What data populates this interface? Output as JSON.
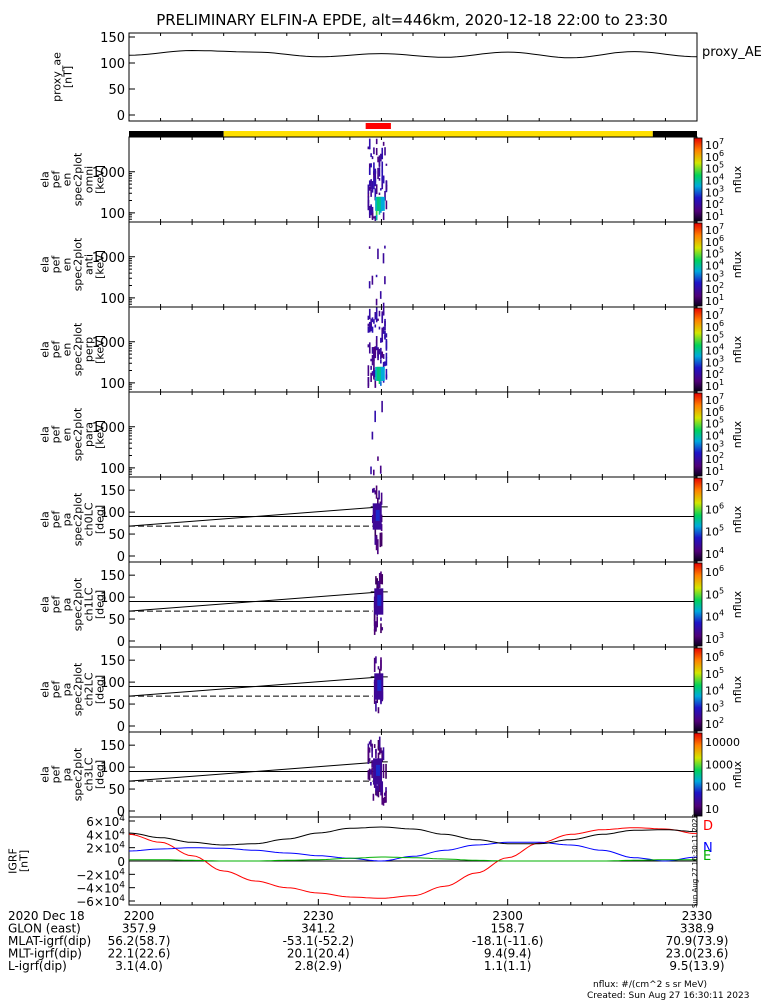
{
  "title": "PRELIMINARY ELFIN-A EPDE, alt=446km, 2020-12-18 22:00 to 23:30",
  "colors": {
    "red": "#ff0000",
    "yellow": "#ffe000",
    "black": "#000000",
    "blue": "#0000ff",
    "green": "#00b000"
  },
  "chart_data": [
    {
      "type": "line",
      "panel": "proxy_ae",
      "ylabel": [
        "proxy_ae",
        "[nT]"
      ],
      "legend": "proxy_AE",
      "ylim": [
        0,
        150
      ],
      "yticks": [
        "150",
        "100",
        "50",
        "0"
      ],
      "x_min": [
        0,
        10,
        20,
        30,
        40,
        50,
        60,
        70,
        80,
        90
      ],
      "series": [
        {
          "values": [
            115,
            124,
            121,
            112,
            118,
            111,
            121,
            110,
            122,
            112
          ]
        }
      ]
    },
    {
      "type": "bar",
      "panel": "orbit_bar",
      "segments": [
        {
          "from_min": 0,
          "to_min": 15,
          "color": "black"
        },
        {
          "from_min": 15,
          "to_min": 83,
          "color": "yellow"
        },
        {
          "from_min": 83,
          "to_min": 90,
          "color": "black"
        }
      ],
      "science_zone": {
        "from_min": 37.5,
        "to_min": 41.5,
        "color": "red"
      }
    },
    {
      "type": "heatmap",
      "panel": "omni",
      "ylabel": [
        "ela",
        "pef",
        "en",
        "spec2plot",
        "omni",
        "[keV]"
      ],
      "yscale": "log",
      "ylim": [
        60,
        7000
      ],
      "yticks": [
        "1000",
        "100"
      ],
      "zlabel": "nflux",
      "zlim": [
        10,
        10000000
      ],
      "ztick_exponents": [
        "7",
        "6",
        "5",
        "4",
        "3",
        "2",
        "1"
      ],
      "time_window_min": [
        37.8,
        40.7
      ],
      "peak_min": 39.5
    },
    {
      "type": "heatmap",
      "panel": "anti",
      "ylabel": [
        "ela",
        "pef",
        "en",
        "spec2plot",
        "anti",
        "[keV]"
      ],
      "yscale": "log",
      "ylim": [
        60,
        7000
      ],
      "yticks": [
        "1000",
        "100"
      ],
      "zlabel": "nflux",
      "zlim": [
        10,
        10000000
      ],
      "ztick_exponents": [
        "7",
        "6",
        "5",
        "4",
        "3",
        "2",
        "1"
      ],
      "time_window_min": [
        38.0,
        40.5
      ]
    },
    {
      "type": "heatmap",
      "panel": "perp",
      "ylabel": [
        "ela",
        "pef",
        "en",
        "spec2plot",
        "perp",
        "[keV]"
      ],
      "yscale": "log",
      "ylim": [
        60,
        7000
      ],
      "yticks": [
        "1000",
        "100"
      ],
      "zlabel": "nflux",
      "zlim": [
        10,
        10000000
      ],
      "ztick_exponents": [
        "7",
        "6",
        "5",
        "4",
        "3",
        "2",
        "1"
      ],
      "time_window_min": [
        37.8,
        40.7
      ],
      "peak_min": 39.5
    },
    {
      "type": "heatmap",
      "panel": "para",
      "ylabel": [
        "ela",
        "pef",
        "en",
        "spec2plot",
        "para",
        "[keV]"
      ],
      "yscale": "log",
      "ylim": [
        60,
        7000
      ],
      "yticks": [
        "1000",
        "100"
      ],
      "zlabel": "nflux",
      "zlim": [
        10,
        10000000
      ],
      "ztick_exponents": [
        "7",
        "6",
        "5",
        "4",
        "3",
        "2",
        "1"
      ],
      "time_window_min": [
        38.0,
        40.5
      ]
    },
    {
      "type": "heatmap",
      "panel": "ch0LC",
      "ylabel": [
        "ela",
        "pef",
        "pa",
        "spec2plot",
        "ch0LC",
        "[deg]"
      ],
      "ylim": [
        0,
        180
      ],
      "yticks": [
        "150",
        "100",
        "50",
        "0"
      ],
      "zlabel": "nflux",
      "zticks": [
        "10<sup>7</sup>",
        "10<sup>6</sup>",
        "10<sup>5</sup>",
        "10<sup>4</sup>"
      ],
      "hline": 90,
      "lc_from": [
        0,
        68
      ],
      "lc_to": [
        40,
        112
      ],
      "dashed": 68,
      "time_window_min": [
        38.5,
        40.0
      ]
    },
    {
      "type": "heatmap",
      "panel": "ch1LC",
      "ylabel": [
        "ela",
        "pef",
        "pa",
        "spec2plot",
        "ch1LC",
        "[deg]"
      ],
      "ylim": [
        0,
        180
      ],
      "yticks": [
        "150",
        "100",
        "50",
        "0"
      ],
      "zlabel": "nflux",
      "zticks": [
        "10<sup>6</sup>",
        "10<sup>5</sup>",
        "10<sup>4</sup>",
        "10<sup>3</sup>"
      ],
      "hline": 90,
      "lc_from": [
        0,
        68
      ],
      "lc_to": [
        40,
        112
      ],
      "dashed": 68,
      "time_window_min": [
        38.8,
        40.2
      ]
    },
    {
      "type": "heatmap",
      "panel": "ch2LC",
      "ylabel": [
        "ela",
        "pef",
        "pa",
        "spec2plot",
        "ch2LC",
        "[deg]"
      ],
      "ylim": [
        0,
        180
      ],
      "yticks": [
        "150",
        "100",
        "50",
        "0"
      ],
      "zlabel": "nflux",
      "zticks": [
        "10<sup>6</sup>",
        "10<sup>5</sup>",
        "10<sup>4</sup>",
        "10<sup>3</sup>",
        "10<sup>2</sup>"
      ],
      "hline": 90,
      "lc_from": [
        0,
        68
      ],
      "lc_to": [
        40,
        112
      ],
      "dashed": 68,
      "time_window_min": [
        38.8,
        40.2
      ]
    },
    {
      "type": "heatmap",
      "panel": "ch3LC",
      "ylabel": [
        "ela",
        "pef",
        "pa",
        "spec2plot",
        "ch3LC",
        "[deg]"
      ],
      "ylim": [
        0,
        180
      ],
      "yticks": [
        "150",
        "100",
        "50",
        "0"
      ],
      "zlabel": "nflux",
      "zticks": [
        "10000",
        "1000",
        "100",
        "10"
      ],
      "hline": 90,
      "lc_from": [
        0,
        68
      ],
      "lc_to": [
        40,
        112
      ],
      "dashed": 68,
      "time_window_min": [
        37.8,
        40.8
      ]
    },
    {
      "type": "line",
      "panel": "igrf",
      "ylabel": [
        "IGRF",
        "[nT]"
      ],
      "ylim": [
        -60000,
        60000
      ],
      "yticks": [
        "6×10<sup>4</sup>",
        "4×10<sup>4</sup>",
        "2×10<sup>4</sup>",
        "0",
        "−2×10<sup>4</sup>",
        "−4×10<sup>4</sup>",
        "−6×10<sup>4</sup>"
      ],
      "x_min": [
        0,
        5,
        10,
        15,
        20,
        25,
        30,
        35,
        40,
        45,
        50,
        55,
        60,
        65,
        70,
        75,
        80,
        85,
        90
      ],
      "series": [
        {
          "name": "D",
          "color": "red",
          "values": [
            40000,
            28000,
            8000,
            -15000,
            -30000,
            -40000,
            -48000,
            -54000,
            -56000,
            -52000,
            -38000,
            -18000,
            5000,
            27000,
            40000,
            47000,
            50000,
            48000,
            41000
          ]
        },
        {
          "name": "N",
          "color": "blue",
          "values": [
            15000,
            18000,
            20000,
            19000,
            16000,
            12000,
            8000,
            4000,
            0,
            7000,
            16000,
            24000,
            28000,
            28000,
            24000,
            16000,
            5000,
            0,
            6000
          ]
        },
        {
          "name": "E",
          "color": "green",
          "values": [
            2000,
            2000,
            1000,
            0,
            0,
            1000,
            2000,
            4000,
            6000,
            5000,
            3000,
            1000,
            0,
            0,
            0,
            0,
            1000,
            2000,
            2000
          ]
        },
        {
          "color": "black",
          "values": [
            42000,
            35000,
            28000,
            24000,
            26000,
            33000,
            42000,
            49000,
            51000,
            48000,
            40000,
            32000,
            26000,
            26000,
            32000,
            40000,
            46000,
            47000,
            44000
          ]
        }
      ]
    }
  ],
  "footer": {
    "rows": [
      {
        "label": "2020 Dec 18",
        "values": [
          "2200",
          "2230",
          "2300",
          "2330"
        ]
      },
      {
        "label": "GLON (east)",
        "values": [
          "357.9",
          "341.2",
          "158.7",
          "338.9"
        ]
      },
      {
        "label": "MLAT-igrf(dip)",
        "values": [
          "56.2(58.7)",
          "-53.1(-52.2)",
          "-18.1(-11.6)",
          "70.9(73.9)"
        ]
      },
      {
        "label": "MLT-igrf(dip)",
        "values": [
          "22.1(22.6)",
          "20.1(20.4)",
          "9.4(9.4)",
          "23.0(23.6)"
        ]
      },
      {
        "label": "L-igrf(dip)",
        "values": [
          "3.1(4.0)",
          "2.8(2.9)",
          "1.1(1.1)",
          "9.5(13.9)"
        ]
      }
    ],
    "nflux_unit": "nflux: #/(cm^2 s sr MeV)",
    "created": "Created: Sun Aug 27 16:30:11 2023",
    "stamp": "Sun Aug 27 16:30:11 2023"
  }
}
